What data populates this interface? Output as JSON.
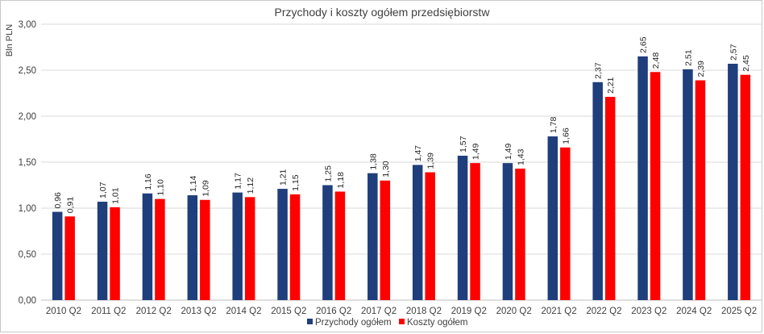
{
  "chart_data": {
    "type": "bar",
    "title": "Przychody i koszty ogółem przedsiębiorstw",
    "ylabel": "Bln PLN",
    "xlabel": "",
    "ylim": [
      0,
      3
    ],
    "y_ticks": [
      "0,00",
      "0,50",
      "1,00",
      "1,50",
      "2,00",
      "2,50",
      "3,00"
    ],
    "y_tick_values": [
      0,
      0.5,
      1,
      1.5,
      2,
      2.5,
      3
    ],
    "grid": true,
    "legend_position": "bottom",
    "categories": [
      "2010 Q2",
      "2011 Q2",
      "2012 Q2",
      "2013 Q2",
      "2014 Q2",
      "2015 Q2",
      "2016 Q2",
      "2017 Q2",
      "2018 Q2",
      "2019 Q2",
      "2020 Q2",
      "2021 Q2",
      "2022 Q2",
      "2023 Q2",
      "2024 Q2",
      "2025 Q2"
    ],
    "series": [
      {
        "name": "Przychody ogółem",
        "color": "#1f3e7c",
        "values": [
          0.96,
          1.07,
          1.16,
          1.14,
          1.17,
          1.21,
          1.25,
          1.38,
          1.47,
          1.57,
          1.49,
          1.78,
          2.37,
          2.65,
          2.51,
          2.57
        ],
        "labels": [
          "0,96",
          "1,07",
          "1,16",
          "1,14",
          "1,17",
          "1,21",
          "1,25",
          "1,38",
          "1,47",
          "1,57",
          "1,49",
          "1,78",
          "2,37",
          "2,65",
          "2,51",
          "2,57"
        ]
      },
      {
        "name": "Koszty ogółem",
        "color": "#ff0000",
        "values": [
          0.91,
          1.01,
          1.1,
          1.09,
          1.12,
          1.15,
          1.18,
          1.3,
          1.39,
          1.49,
          1.43,
          1.66,
          2.21,
          2.48,
          2.39,
          2.45
        ],
        "labels": [
          "0,91",
          "1,01",
          "1,10",
          "1,09",
          "1,12",
          "1,15",
          "1,18",
          "1,30",
          "1,39",
          "1,49",
          "1,43",
          "1,66",
          "2,21",
          "2,48",
          "2,39",
          "2,45"
        ]
      }
    ]
  }
}
